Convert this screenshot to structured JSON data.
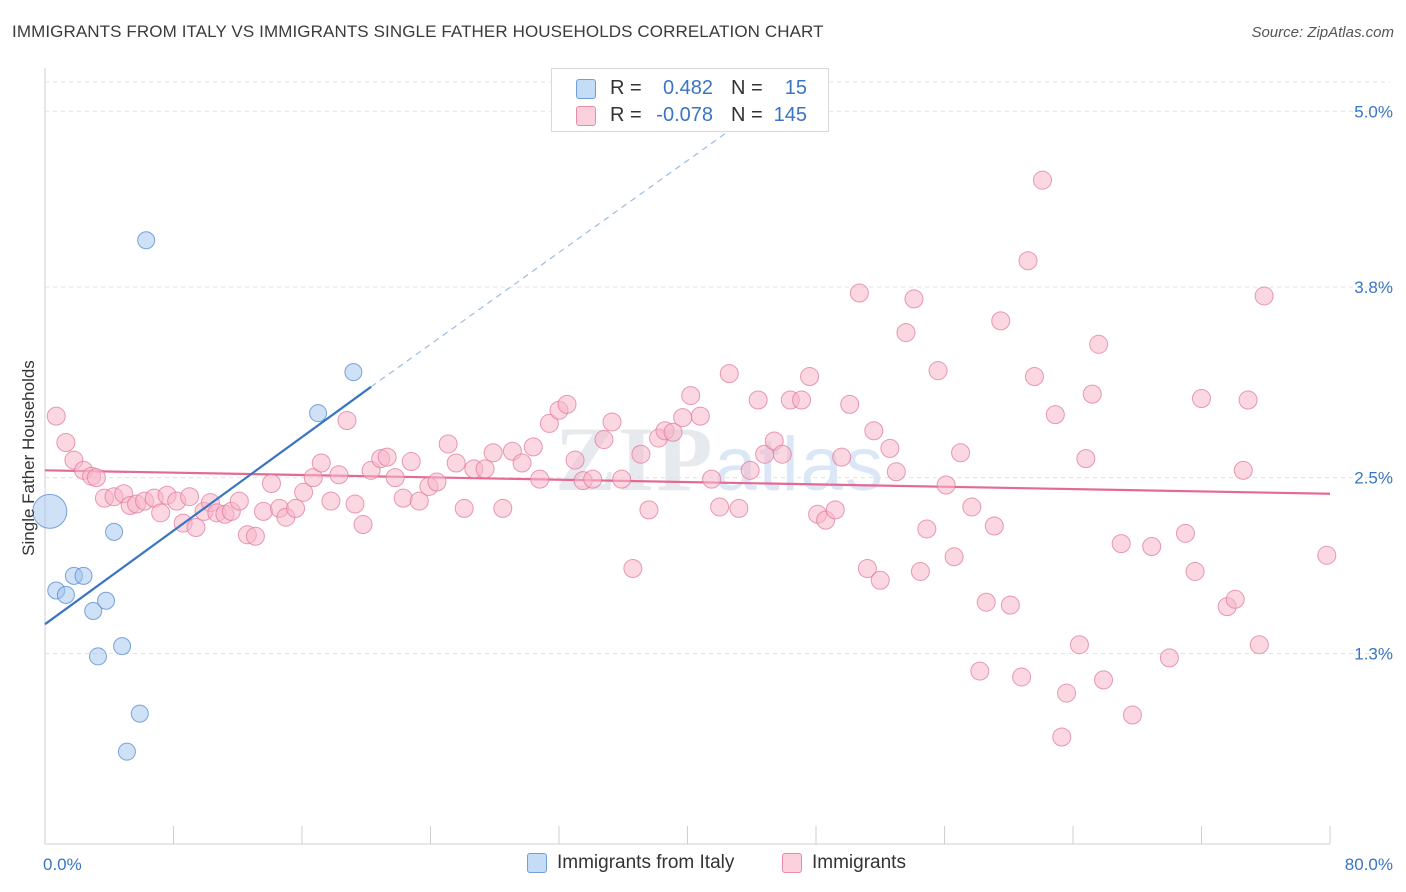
{
  "title": "IMMIGRANTS FROM ITALY VS IMMIGRANTS SINGLE FATHER HOUSEHOLDS CORRELATION CHART",
  "source": "Source: ZipAtlas.com",
  "watermark": "ZIPatlas",
  "legend": {
    "rows": [
      {
        "r_label": "R =",
        "r_value": "0.482",
        "n_label": "N =",
        "n_value": "15",
        "color": "#9ec3ef",
        "stroke": "#5b8fd1"
      },
      {
        "r_label": "R =",
        "r_value": "-0.078",
        "n_label": "N =",
        "n_value": "145",
        "color": "#f7b7ca",
        "stroke": "#e27a9c"
      }
    ]
  },
  "bottom_legend": [
    {
      "label": "Immigrants from Italy",
      "color": "#c5dcf6",
      "stroke": "#6e9fdc"
    },
    {
      "label": "Immigrants",
      "color": "#fbd1de",
      "stroke": "#e88aa8"
    }
  ],
  "chart_data": {
    "type": "scatter",
    "title": "IMMIGRANTS FROM ITALY VS IMMIGRANTS SINGLE FATHER HOUSEHOLDS CORRELATION CHART",
    "xlabel": "",
    "ylabel": "Single Father Households",
    "xlim": [
      0,
      80
    ],
    "ylim": [
      0.0,
      5.2
    ],
    "x_tick_labels": [
      "0.0%",
      "80.0%"
    ],
    "y_ticks": [
      1.3,
      2.5,
      3.8,
      5.0
    ],
    "y_tick_labels": [
      "1.3%",
      "2.5%",
      "3.8%",
      "5.0%"
    ],
    "grid": true,
    "series": [
      {
        "name": "Immigrants from Italy",
        "color": "#9ec3ef",
        "stroke": "#5b8fd1",
        "trend": {
          "x": [
            0,
            20.3
          ],
          "y": [
            1.5,
            3.12
          ],
          "color": "#3a75c4",
          "dash_to": [
            42.5,
            4.86
          ]
        },
        "points": [
          [
            0.3,
            2.27,
            30
          ],
          [
            0.7,
            1.73,
            9
          ],
          [
            1.3,
            1.7,
            9
          ],
          [
            1.8,
            1.83,
            9
          ],
          [
            2.4,
            1.83,
            9
          ],
          [
            3.0,
            1.59,
            9
          ],
          [
            3.3,
            1.28,
            9
          ],
          [
            3.8,
            1.66,
            9
          ],
          [
            4.3,
            2.13,
            9
          ],
          [
            4.8,
            1.35,
            9
          ],
          [
            5.1,
            0.63,
            9
          ],
          [
            5.9,
            0.89,
            9
          ],
          [
            6.3,
            4.12,
            9
          ],
          [
            17.0,
            2.94,
            9
          ],
          [
            19.2,
            3.22,
            9
          ]
        ]
      },
      {
        "name": "Immigrants",
        "color": "#f7b7ca",
        "stroke": "#e27a9c",
        "trend": {
          "x": [
            0,
            80
          ],
          "y": [
            2.55,
            2.39
          ],
          "color": "#e46a93"
        },
        "points": [
          [
            0.7,
            2.92
          ],
          [
            1.3,
            2.74
          ],
          [
            1.8,
            2.62
          ],
          [
            2.4,
            2.55
          ],
          [
            2.9,
            2.51
          ],
          [
            3.2,
            2.5
          ],
          [
            3.7,
            2.36
          ],
          [
            4.3,
            2.37
          ],
          [
            4.9,
            2.39
          ],
          [
            5.3,
            2.31
          ],
          [
            5.7,
            2.32
          ],
          [
            6.2,
            2.34
          ],
          [
            6.8,
            2.36
          ],
          [
            7.2,
            2.26
          ],
          [
            7.6,
            2.38
          ],
          [
            8.2,
            2.34
          ],
          [
            8.6,
            2.19
          ],
          [
            9.0,
            2.37
          ],
          [
            9.4,
            2.16
          ],
          [
            9.9,
            2.27
          ],
          [
            10.3,
            2.33
          ],
          [
            10.7,
            2.26
          ],
          [
            11.2,
            2.25
          ],
          [
            11.6,
            2.27
          ],
          [
            12.1,
            2.34
          ],
          [
            12.6,
            2.11
          ],
          [
            13.1,
            2.1
          ],
          [
            13.6,
            2.27
          ],
          [
            14.1,
            2.46
          ],
          [
            14.6,
            2.29
          ],
          [
            15.0,
            2.23
          ],
          [
            15.6,
            2.29
          ],
          [
            16.1,
            2.4
          ],
          [
            16.7,
            2.5
          ],
          [
            17.2,
            2.6
          ],
          [
            17.8,
            2.34
          ],
          [
            18.3,
            2.52
          ],
          [
            18.8,
            2.89
          ],
          [
            19.3,
            2.32
          ],
          [
            19.8,
            2.18
          ],
          [
            20.3,
            2.55
          ],
          [
            20.9,
            2.63
          ],
          [
            21.3,
            2.64
          ],
          [
            21.8,
            2.5
          ],
          [
            22.3,
            2.36
          ],
          [
            22.8,
            2.61
          ],
          [
            23.3,
            2.34
          ],
          [
            23.9,
            2.44
          ],
          [
            24.4,
            2.47
          ],
          [
            25.1,
            2.73
          ],
          [
            25.6,
            2.6
          ],
          [
            26.1,
            2.29
          ],
          [
            26.7,
            2.56
          ],
          [
            27.4,
            2.56
          ],
          [
            27.9,
            2.67
          ],
          [
            28.5,
            2.29
          ],
          [
            29.1,
            2.68
          ],
          [
            29.7,
            2.6
          ],
          [
            30.4,
            2.71
          ],
          [
            30.8,
            2.49
          ],
          [
            31.4,
            2.87
          ],
          [
            32.0,
            2.96
          ],
          [
            32.5,
            3.0
          ],
          [
            33.0,
            2.62
          ],
          [
            33.5,
            2.48
          ],
          [
            34.1,
            2.49
          ],
          [
            34.8,
            2.76
          ],
          [
            35.3,
            2.88
          ],
          [
            35.9,
            2.49
          ],
          [
            36.6,
            1.88
          ],
          [
            37.1,
            2.66
          ],
          [
            37.6,
            2.28
          ],
          [
            38.2,
            2.77
          ],
          [
            38.6,
            2.82
          ],
          [
            39.1,
            2.81
          ],
          [
            39.7,
            2.91
          ],
          [
            40.2,
            3.06
          ],
          [
            40.8,
            2.92
          ],
          [
            41.5,
            2.49
          ],
          [
            42.0,
            2.3
          ],
          [
            42.6,
            3.21
          ],
          [
            43.2,
            2.29
          ],
          [
            43.9,
            2.55
          ],
          [
            44.4,
            3.03
          ],
          [
            44.8,
            2.66
          ],
          [
            45.4,
            2.75
          ],
          [
            45.9,
            2.66
          ],
          [
            46.4,
            3.03
          ],
          [
            47.1,
            3.03
          ],
          [
            47.6,
            3.19
          ],
          [
            48.1,
            2.25
          ],
          [
            48.6,
            2.21
          ],
          [
            49.2,
            2.28
          ],
          [
            49.6,
            2.64
          ],
          [
            50.1,
            3.0
          ],
          [
            50.7,
            3.76
          ],
          [
            51.2,
            1.88
          ],
          [
            51.6,
            2.82
          ],
          [
            52.0,
            1.8
          ],
          [
            52.6,
            2.7
          ],
          [
            53.0,
            2.54
          ],
          [
            53.6,
            3.49
          ],
          [
            54.1,
            3.72
          ],
          [
            54.5,
            1.86
          ],
          [
            54.9,
            2.15
          ],
          [
            55.6,
            3.23
          ],
          [
            56.1,
            2.45
          ],
          [
            56.6,
            1.96
          ],
          [
            57.0,
            2.67
          ],
          [
            57.7,
            2.3
          ],
          [
            58.2,
            1.18
          ],
          [
            58.6,
            1.65
          ],
          [
            59.1,
            2.17
          ],
          [
            59.5,
            3.57
          ],
          [
            60.1,
            1.63
          ],
          [
            60.8,
            1.14
          ],
          [
            61.2,
            3.98
          ],
          [
            61.6,
            3.19
          ],
          [
            62.1,
            4.53
          ],
          [
            62.9,
            2.93
          ],
          [
            63.3,
            0.73
          ],
          [
            63.6,
            1.03
          ],
          [
            64.4,
            1.36
          ],
          [
            64.8,
            2.63
          ],
          [
            65.2,
            3.07
          ],
          [
            65.6,
            3.41
          ],
          [
            65.9,
            1.12
          ],
          [
            67.0,
            2.05
          ],
          [
            67.7,
            0.88
          ],
          [
            68.9,
            2.03
          ],
          [
            70.0,
            1.27
          ],
          [
            71.0,
            2.12
          ],
          [
            71.6,
            1.86
          ],
          [
            72.0,
            3.04
          ],
          [
            73.6,
            1.62
          ],
          [
            74.1,
            1.67
          ],
          [
            74.6,
            2.55
          ],
          [
            74.9,
            3.03
          ],
          [
            75.6,
            1.36
          ],
          [
            75.9,
            3.74
          ],
          [
            79.8,
            1.97
          ]
        ]
      }
    ]
  }
}
